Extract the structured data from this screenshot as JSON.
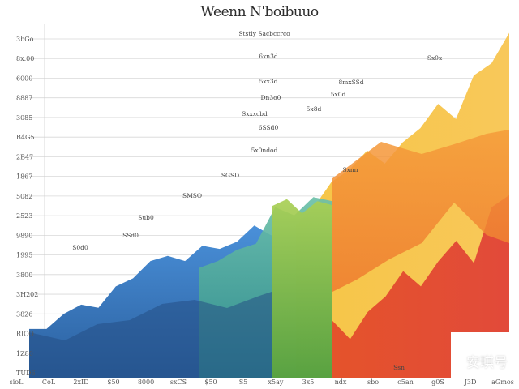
{
  "chart_data": {
    "type": "area",
    "title": "Weenn Nˈboibuuo",
    "xlabel": "",
    "ylabel": "",
    "y_tick_labels": [
      "3bGo",
      "8x.00",
      "6000",
      "8887",
      "3085",
      "B4G5",
      "2B47",
      "1867",
      "5082",
      "2523",
      "9890",
      "1995",
      "3800",
      "3H202",
      "3826",
      "RICO",
      "1Z80",
      "TUD6"
    ],
    "x_tick_labels": [
      "sioL",
      "CoL",
      "2xID",
      "$50",
      "8000",
      "sxCS",
      "$50",
      "S5",
      "x5ay",
      "3x5",
      "ndx",
      "sbo",
      "c5an",
      "g0S",
      "J3D",
      "aGmos"
    ],
    "annotations": [
      "Ststly Sacbccrco",
      "6xn3d",
      "5xx3d",
      "Dn3o0",
      "Sxxxcbd",
      "6SSd0",
      "5x0ndod",
      "SGSD",
      "SMSO",
      "Sub0",
      "SSd0",
      "S0d0",
      "8mxSSd",
      "5x0d",
      "5x8d",
      "Sxnn",
      "Sx0x",
      "Ssn"
    ],
    "series": [
      {
        "color": "#3a7fc7",
        "values": [
          480,
          480,
          630,
          720,
          690,
          900,
          980,
          1150,
          1200,
          1150,
          1300,
          1270,
          1340,
          1500,
          1400
        ]
      },
      {
        "color": "#4ea79a",
        "values": [
          1080,
          1150,
          1260,
          1320,
          1680,
          1600,
          1780,
          1740
        ]
      },
      {
        "color": "#8fc04a",
        "values": [
          1690,
          1760,
          1620,
          1740,
          1700
        ]
      },
      {
        "color": "#f2b63b",
        "values": [
          1500,
          1680,
          1930,
          2050,
          2240,
          2110,
          2320,
          2460,
          2700,
          2550,
          2980,
          3100,
          3400
        ]
      },
      {
        "color": "#ea5a32",
        "values": [
          560,
          380,
          650,
          800,
          1050,
          900,
          1150,
          1350,
          1130,
          1680,
          1800
        ]
      }
    ],
    "ylim": [
      0,
      3500
    ],
    "grid": true,
    "legend": "none"
  },
  "watermark": "安琪号"
}
